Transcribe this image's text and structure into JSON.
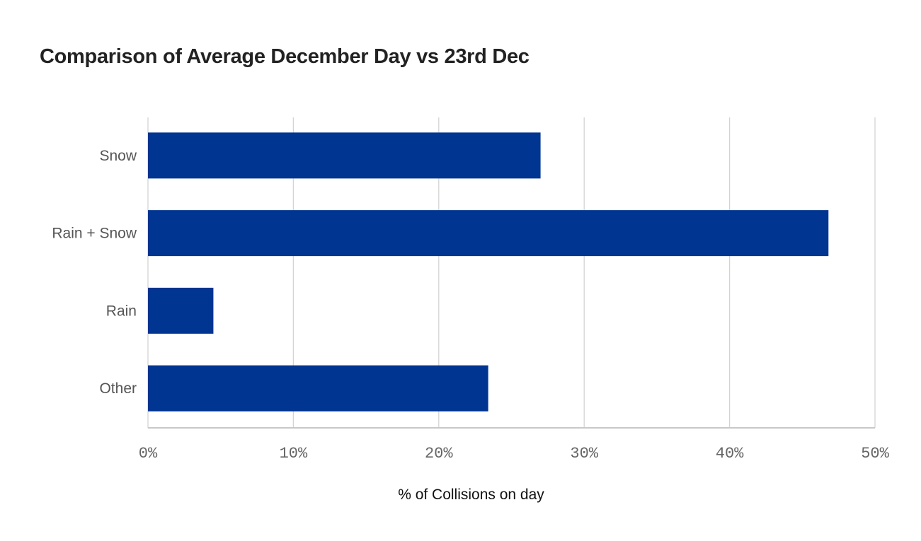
{
  "chart_data": {
    "type": "bar",
    "orientation": "horizontal",
    "title": "Comparison of Average December Day vs 23rd Dec",
    "categories": [
      "Snow",
      "Rain + Snow",
      "Rain",
      "Other"
    ],
    "values": [
      27.0,
      46.8,
      4.5,
      23.4
    ],
    "xlabel": "% of Collisions on day",
    "ylabel": "",
    "xlim": [
      0,
      50
    ],
    "xticks": [
      "0%",
      "10%",
      "20%",
      "30%",
      "40%",
      "50%"
    ],
    "grid": true,
    "bar_color": "#003591",
    "legend": "none"
  }
}
